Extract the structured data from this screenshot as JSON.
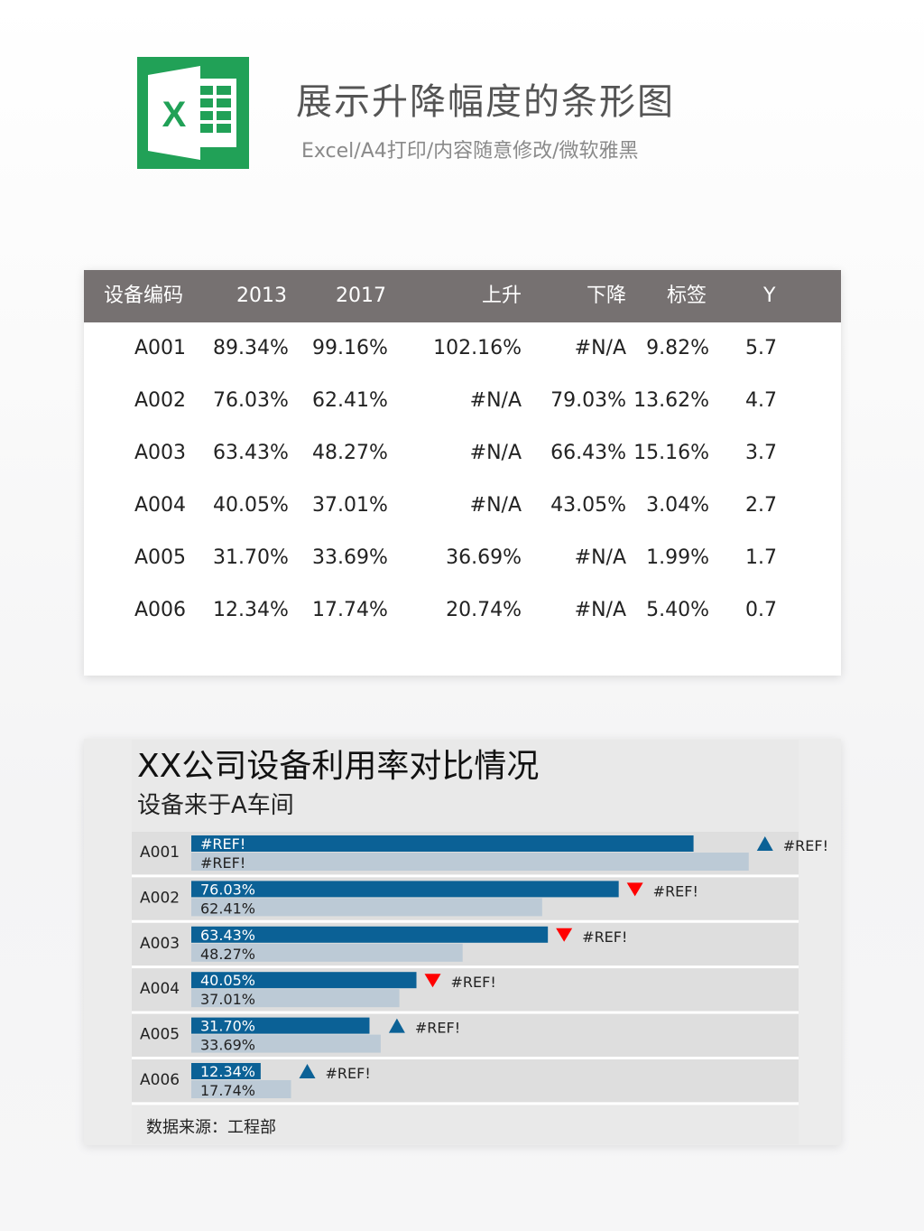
{
  "header": {
    "logo_letter": "X",
    "title": "展示升降幅度的条形图",
    "subtitle": "Excel/A4打印/内容随意修改/微软雅黑"
  },
  "table": {
    "columns": [
      "设备编码",
      "2013",
      "2017",
      "上升",
      "下降",
      "标签",
      "Y"
    ],
    "rows": [
      [
        "A001",
        "89.34%",
        "99.16%",
        "102.16%",
        "#N/A",
        "9.82%",
        "5.7"
      ],
      [
        "A002",
        "76.03%",
        "62.41%",
        "#N/A",
        "79.03%",
        "13.62%",
        "4.7"
      ],
      [
        "A003",
        "63.43%",
        "48.27%",
        "#N/A",
        "66.43%",
        "15.16%",
        "3.7"
      ],
      [
        "A004",
        "40.05%",
        "37.01%",
        "#N/A",
        "43.05%",
        "3.04%",
        "2.7"
      ],
      [
        "A005",
        "31.70%",
        "33.69%",
        "36.69%",
        "#N/A",
        "1.99%",
        "1.7"
      ],
      [
        "A006",
        "12.34%",
        "17.74%",
        "20.74%",
        "#N/A",
        "5.40%",
        "0.7"
      ]
    ]
  },
  "chart_data": {
    "type": "bar",
    "title": "XX公司设备利用率对比情况",
    "subtitle": "设备来于A车间",
    "source": "数据来源：工程部",
    "categories": [
      "A001",
      "A002",
      "A003",
      "A004",
      "A005",
      "A006"
    ],
    "series": [
      {
        "values": [
          89.34,
          76.03,
          63.43,
          40.05,
          31.7,
          12.34
        ],
        "labels": [
          "#REF!",
          "76.03%",
          "63.43%",
          "40.05%",
          "31.70%",
          "12.34%"
        ],
        "color": "#0b6196"
      },
      {
        "values": [
          99.16,
          62.41,
          48.27,
          37.01,
          33.69,
          17.74
        ],
        "labels": [
          "#REF!",
          "62.41%",
          "48.27%",
          "37.01%",
          "33.69%",
          "17.74%"
        ],
        "color": "#bccad6"
      }
    ],
    "markers": [
      {
        "direction": "up",
        "label": "#REF!"
      },
      {
        "direction": "down",
        "label": "#REF!"
      },
      {
        "direction": "down",
        "label": "#REF!"
      },
      {
        "direction": "down",
        "label": "#REF!"
      },
      {
        "direction": "up",
        "label": "#REF!"
      },
      {
        "direction": "up",
        "label": "#REF!"
      }
    ],
    "marker_colors": {
      "up": "#0b6196",
      "down": "#ff0000"
    },
    "xlim": [
      0,
      120
    ],
    "grid": false
  }
}
